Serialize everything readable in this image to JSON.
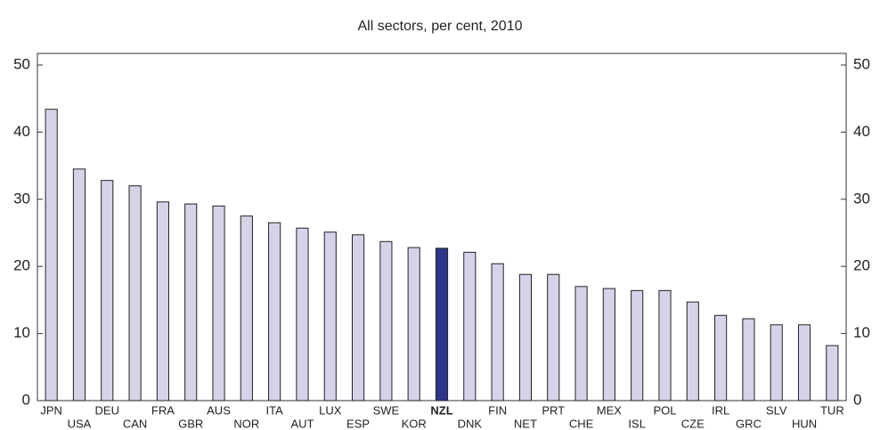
{
  "chart_data": {
    "type": "bar",
    "title": "All sectors, per cent, 2010",
    "categories": [
      "JPN",
      "USA",
      "DEU",
      "CAN",
      "FRA",
      "GBR",
      "AUS",
      "NOR",
      "ITA",
      "AUT",
      "LUX",
      "ESP",
      "SWE",
      "KOR",
      "NZL",
      "DNK",
      "FIN",
      "NET",
      "PRT",
      "CHE",
      "MEX",
      "ISL",
      "POL",
      "CZE",
      "IRL",
      "GRC",
      "SLV",
      "HUN",
      "TUR"
    ],
    "values": [
      43.4,
      34.5,
      32.8,
      32.0,
      29.6,
      29.3,
      29.0,
      27.5,
      26.5,
      25.7,
      25.1,
      24.7,
      23.7,
      22.8,
      22.7,
      22.1,
      20.4,
      18.8,
      18.8,
      17.0,
      16.7,
      16.4,
      16.4,
      14.7,
      12.7,
      12.2,
      11.3,
      11.3,
      8.2
    ],
    "colors": [
      "#d4d3e8",
      "#d4d3e8",
      "#d4d3e8",
      "#d4d3e8",
      "#d4d3e8",
      "#d4d3e8",
      "#d4d3e8",
      "#d4d3e8",
      "#d4d3e8",
      "#d4d3e8",
      "#d4d3e8",
      "#d4d3e8",
      "#d4d3e8",
      "#d4d3e8",
      "#2b3589",
      "#d4d3e8",
      "#d4d3e8",
      "#d4d3e8",
      "#d4d3e8",
      "#d4d3e8",
      "#d4d3e8",
      "#d4d3e8",
      "#d4d3e8",
      "#d4d3e8",
      "#d4d3e8",
      "#d4d3e8",
      "#d4d3e8",
      "#d4d3e8",
      "#d4d3e8"
    ],
    "highlight_color": "#2b3589",
    "ylim": [
      0,
      50
    ],
    "yticks": [
      0,
      10,
      20,
      30,
      40,
      50
    ],
    "y2lim": [
      0,
      50
    ],
    "y2ticks": [
      0,
      10,
      20,
      30,
      40,
      50
    ]
  }
}
